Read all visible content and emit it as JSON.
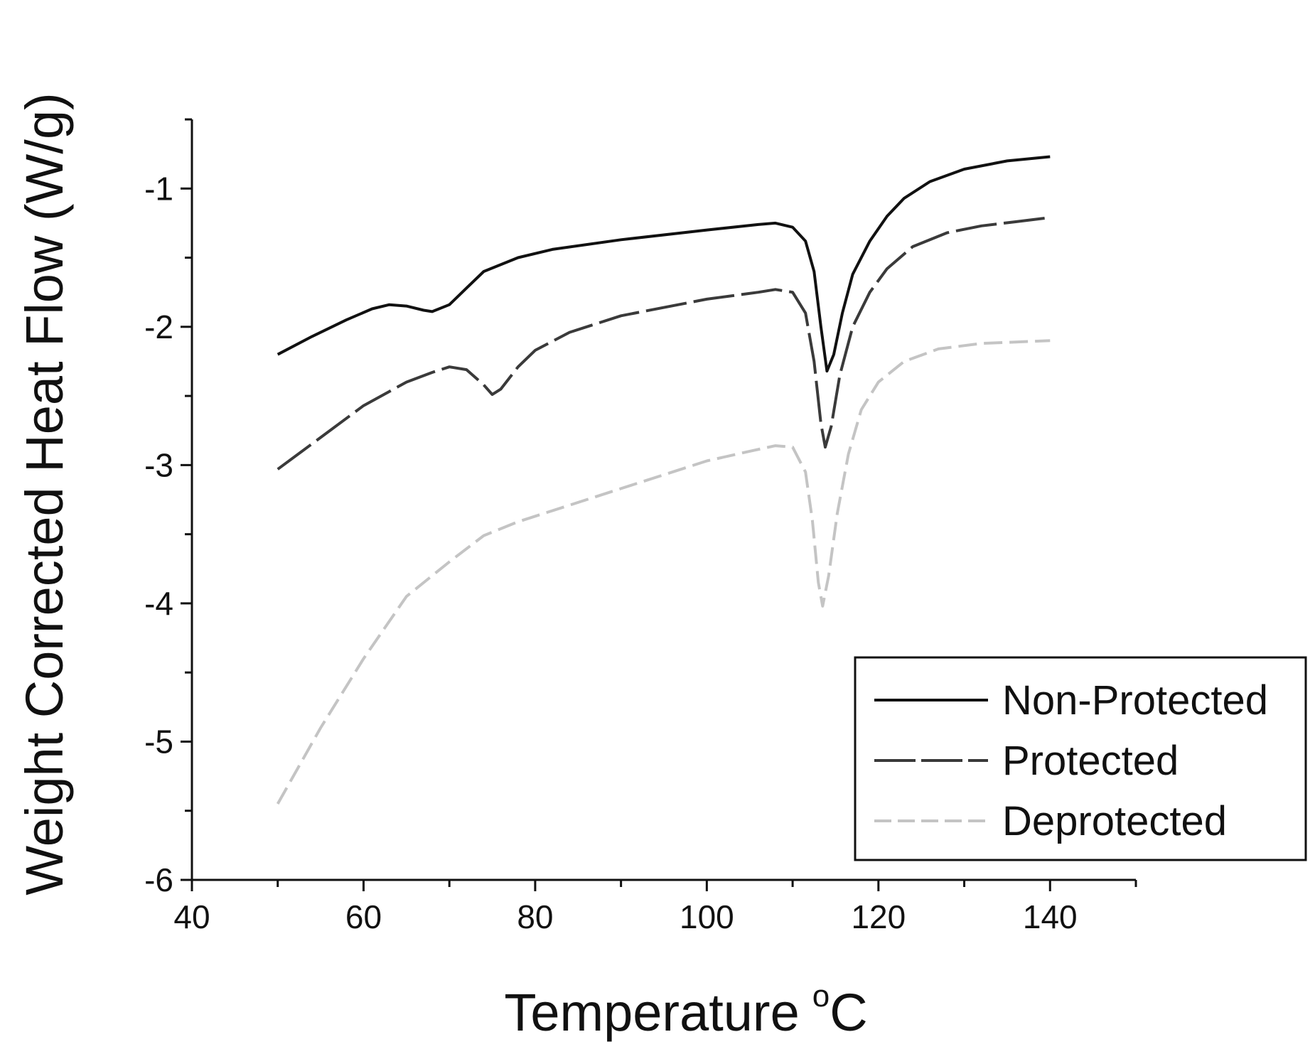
{
  "chart_data": {
    "type": "line",
    "xlabel": "Temperature",
    "xlabel_unit": "°C",
    "ylabel": "Weight Corrected Heat Flow (W/g)",
    "xlim": [
      40,
      150
    ],
    "ylim": [
      -6,
      -0.5
    ],
    "xticks": [
      40,
      60,
      80,
      100,
      120,
      140
    ],
    "yticks": [
      -1,
      -2,
      -3,
      -4,
      -5,
      -6
    ],
    "x_minor_step": 10,
    "y_minor_step": 0.5,
    "grid": false,
    "legend_position": "bottom-right",
    "series": [
      {
        "name": "Non-Protected",
        "color": "#111111",
        "style": "solid",
        "points": [
          [
            50,
            -2.2
          ],
          [
            54,
            -2.07
          ],
          [
            58,
            -1.95
          ],
          [
            61,
            -1.87
          ],
          [
            63,
            -1.84
          ],
          [
            65,
            -1.85
          ],
          [
            67,
            -1.88
          ],
          [
            68,
            -1.89
          ],
          [
            70,
            -1.84
          ],
          [
            72,
            -1.72
          ],
          [
            74,
            -1.6
          ],
          [
            78,
            -1.5
          ],
          [
            82,
            -1.44
          ],
          [
            90,
            -1.37
          ],
          [
            100,
            -1.3
          ],
          [
            106,
            -1.26
          ],
          [
            108,
            -1.25
          ],
          [
            110,
            -1.28
          ],
          [
            111.5,
            -1.38
          ],
          [
            112.5,
            -1.6
          ],
          [
            113.3,
            -2.0
          ],
          [
            114,
            -2.32
          ],
          [
            114.8,
            -2.2
          ],
          [
            115.8,
            -1.9
          ],
          [
            117,
            -1.62
          ],
          [
            119,
            -1.38
          ],
          [
            121,
            -1.2
          ],
          [
            123,
            -1.07
          ],
          [
            126,
            -0.95
          ],
          [
            130,
            -0.86
          ],
          [
            135,
            -0.8
          ],
          [
            140,
            -0.77
          ]
        ]
      },
      {
        "name": "Protected",
        "color": "#3a3a3a",
        "style": "long-dash",
        "points": [
          [
            50,
            -3.03
          ],
          [
            55,
            -2.8
          ],
          [
            60,
            -2.57
          ],
          [
            65,
            -2.4
          ],
          [
            68,
            -2.33
          ],
          [
            70,
            -2.29
          ],
          [
            72,
            -2.31
          ],
          [
            74,
            -2.42
          ],
          [
            75,
            -2.49
          ],
          [
            76,
            -2.45
          ],
          [
            78,
            -2.29
          ],
          [
            80,
            -2.17
          ],
          [
            84,
            -2.04
          ],
          [
            90,
            -1.92
          ],
          [
            100,
            -1.8
          ],
          [
            106,
            -1.75
          ],
          [
            108,
            -1.73
          ],
          [
            110,
            -1.75
          ],
          [
            111.5,
            -1.9
          ],
          [
            112.5,
            -2.25
          ],
          [
            113.3,
            -2.7
          ],
          [
            113.8,
            -2.87
          ],
          [
            114.5,
            -2.72
          ],
          [
            115.5,
            -2.35
          ],
          [
            117,
            -2.0
          ],
          [
            119,
            -1.75
          ],
          [
            121,
            -1.58
          ],
          [
            124,
            -1.42
          ],
          [
            128,
            -1.32
          ],
          [
            132,
            -1.27
          ],
          [
            136,
            -1.24
          ],
          [
            140,
            -1.21
          ]
        ]
      },
      {
        "name": "Deprotected",
        "color": "#c4c4c4",
        "style": "short-dash",
        "points": [
          [
            50,
            -5.45
          ],
          [
            55,
            -4.9
          ],
          [
            60,
            -4.4
          ],
          [
            65,
            -3.95
          ],
          [
            70,
            -3.7
          ],
          [
            74,
            -3.51
          ],
          [
            78,
            -3.41
          ],
          [
            85,
            -3.27
          ],
          [
            90,
            -3.17
          ],
          [
            95,
            -3.07
          ],
          [
            100,
            -2.97
          ],
          [
            105,
            -2.9
          ],
          [
            108,
            -2.86
          ],
          [
            110,
            -2.87
          ],
          [
            111.5,
            -3.05
          ],
          [
            112.3,
            -3.4
          ],
          [
            113,
            -3.85
          ],
          [
            113.5,
            -4.02
          ],
          [
            114.2,
            -3.8
          ],
          [
            115.2,
            -3.35
          ],
          [
            116.5,
            -2.92
          ],
          [
            118,
            -2.6
          ],
          [
            120,
            -2.4
          ],
          [
            123,
            -2.25
          ],
          [
            127,
            -2.16
          ],
          [
            132,
            -2.12
          ],
          [
            136,
            -2.11
          ],
          [
            140,
            -2.1
          ]
        ]
      }
    ]
  }
}
